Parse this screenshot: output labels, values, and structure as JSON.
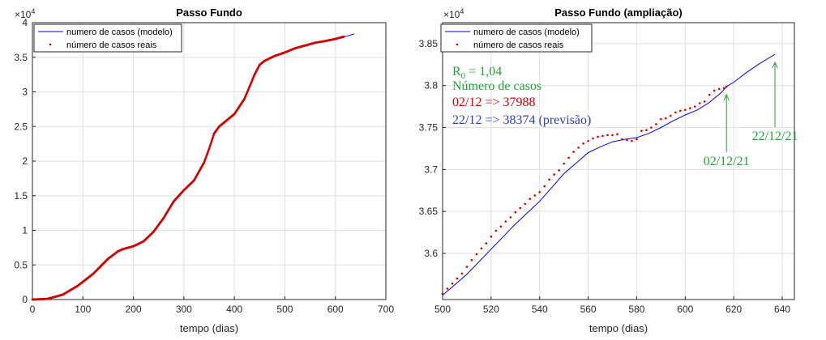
{
  "colors": {
    "model": "#0000ff",
    "real": "#d40000",
    "annotation_green": "#22a33a",
    "annotation_red": "#d40000",
    "annotation_blue": "#2d3fb8"
  },
  "chart_data": [
    {
      "type": "line",
      "title": "Passo Fundo",
      "xlabel": "tempo (dias)",
      "ylabel": "",
      "xlim": [
        0,
        700
      ],
      "ylim": [
        0,
        40000
      ],
      "x_ticks": [
        0,
        100,
        200,
        300,
        400,
        500,
        600,
        700
      ],
      "y_ticks": [
        0,
        0.5,
        1,
        1.5,
        2,
        2.5,
        3,
        3.5,
        4
      ],
      "y_multiplier": "×10",
      "y_multiplier_exp": "4",
      "y_scale": 10000,
      "grid": true,
      "legend_position": "top-left",
      "series": [
        {
          "name": "numero de casos (modelo)",
          "kind": "line",
          "x": [
            0,
            30,
            60,
            90,
            120,
            150,
            170,
            180,
            200,
            220,
            240,
            260,
            280,
            300,
            320,
            340,
            350,
            360,
            370,
            380,
            400,
            420,
            440,
            450,
            460,
            480,
            500,
            520,
            540,
            560,
            580,
            600,
            620,
            637
          ],
          "y": [
            0,
            100,
            700,
            2000,
            3700,
            5900,
            7000,
            7300,
            7700,
            8400,
            9800,
            11800,
            14200,
            15800,
            17200,
            19800,
            21800,
            24000,
            25000,
            25600,
            26800,
            29000,
            32500,
            33900,
            34500,
            35200,
            35700,
            36300,
            36700,
            37100,
            37350,
            37650,
            37990,
            38374
          ]
        },
        {
          "name": "número de casos reais",
          "kind": "points",
          "x": [
            0,
            30,
            60,
            90,
            120,
            150,
            170,
            180,
            200,
            220,
            240,
            260,
            280,
            300,
            320,
            340,
            350,
            360,
            370,
            380,
            400,
            420,
            440,
            450,
            460,
            480,
            500,
            520,
            540,
            560,
            580,
            600,
            617
          ],
          "y": [
            0,
            100,
            700,
            2000,
            3700,
            5900,
            7000,
            7300,
            7700,
            8400,
            9800,
            11800,
            14200,
            15800,
            17200,
            19800,
            21800,
            24000,
            25000,
            25600,
            26800,
            29000,
            32500,
            33900,
            34500,
            35200,
            35700,
            36300,
            36700,
            37100,
            37350,
            37650,
            37988
          ]
        }
      ]
    },
    {
      "type": "line",
      "title": "Passo Fundo (ampliação)",
      "xlabel": "tempo (dias)",
      "ylabel": "",
      "xlim": [
        500,
        645
      ],
      "ylim": [
        35450,
        38750
      ],
      "x_ticks": [
        500,
        520,
        540,
        560,
        580,
        600,
        620,
        640
      ],
      "y_ticks": [
        3.6,
        3.65,
        3.7,
        3.75,
        3.8,
        3.85
      ],
      "y_multiplier": "×10",
      "y_multiplier_exp": "4",
      "y_scale": 10000,
      "grid": true,
      "legend_position": "top-right",
      "series": [
        {
          "name": "numero de casos (modelo)",
          "kind": "line",
          "x": [
            500,
            510,
            520,
            530,
            540,
            550,
            560,
            565,
            570,
            575,
            580,
            585,
            590,
            595,
            600,
            605,
            610,
            615,
            617,
            620,
            625,
            630,
            637
          ],
          "y": [
            35500,
            35750,
            36050,
            36350,
            36620,
            36950,
            37200,
            37270,
            37330,
            37360,
            37380,
            37430,
            37500,
            37580,
            37650,
            37710,
            37800,
            37920,
            37988,
            38040,
            38150,
            38250,
            38374
          ]
        },
        {
          "name": "número de casos reais",
          "kind": "points",
          "x": [
            500,
            502,
            504,
            506,
            508,
            510,
            512,
            514,
            516,
            518,
            520,
            522,
            524,
            526,
            528,
            530,
            532,
            534,
            536,
            538,
            540,
            542,
            544,
            546,
            548,
            550,
            552,
            554,
            556,
            558,
            560,
            562,
            564,
            566,
            568,
            570,
            572,
            574,
            576,
            578,
            580,
            582,
            584,
            586,
            588,
            590,
            592,
            594,
            596,
            598,
            600,
            602,
            604,
            606,
            608,
            610,
            612,
            614,
            616,
            617
          ],
          "y": [
            35520,
            35580,
            35640,
            35700,
            35760,
            35840,
            35920,
            35990,
            36060,
            36120,
            36200,
            36270,
            36320,
            36380,
            36430,
            36490,
            36540,
            36590,
            36650,
            36690,
            36730,
            36800,
            36880,
            36940,
            36990,
            37070,
            37140,
            37210,
            37260,
            37310,
            37340,
            37370,
            37390,
            37400,
            37410,
            37410,
            37420,
            37360,
            37350,
            37340,
            37360,
            37460,
            37470,
            37500,
            37540,
            37600,
            37610,
            37640,
            37680,
            37700,
            37710,
            37730,
            37750,
            37790,
            37810,
            37890,
            37940,
            37960,
            37970,
            37988
          ]
        }
      ],
      "annotations": {
        "r0_label": "R",
        "r0_sub": "0",
        "r0_value": " = 1,04",
        "cases_header": "Número de casos",
        "line_real": "02/12 => 37988",
        "line_forecast": "22/12 => 38374 (previsão)",
        "arrow1_label": "02/12/21",
        "arrow1_x": 617,
        "arrow1_y": 37988,
        "arrow1_text_y": 37050,
        "arrow2_label": "22/12/21",
        "arrow2_x": 637,
        "arrow2_y": 38374,
        "arrow2_text_y": 37350
      }
    }
  ]
}
